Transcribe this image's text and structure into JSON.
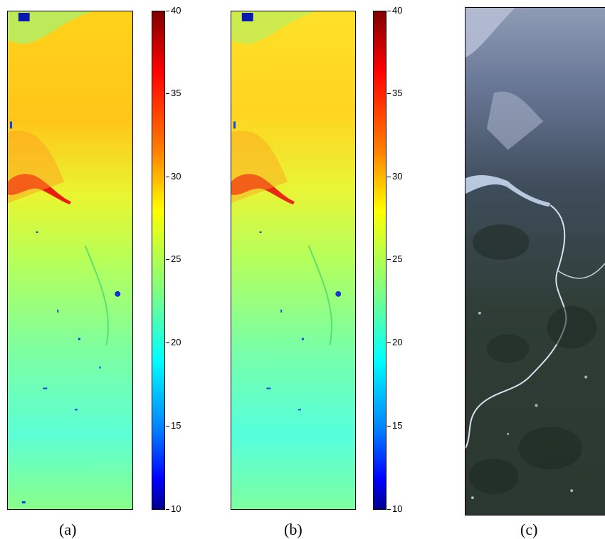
{
  "panels": [
    {
      "caption": "(a)"
    },
    {
      "caption": "(b)"
    },
    {
      "caption": "(c)"
    }
  ],
  "colorbar": {
    "ticks": [
      "40",
      "35",
      "30",
      "25",
      "20",
      "15",
      "10"
    ],
    "min": 10,
    "max": 40,
    "colors": [
      "#00008f",
      "#0000ff",
      "#0080ff",
      "#00ffff",
      "#80ff80",
      "#ffff00",
      "#ff8000",
      "#ff0000",
      "#7f0000"
    ]
  }
}
